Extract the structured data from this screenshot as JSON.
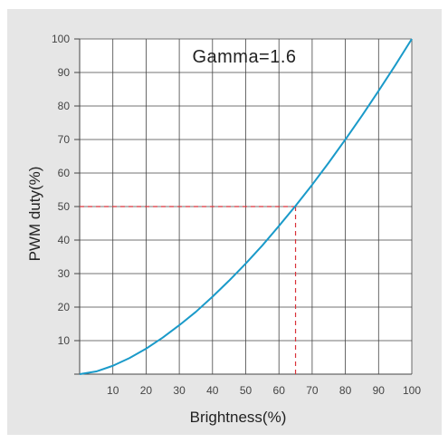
{
  "chart_data": {
    "type": "line",
    "annotation": "Gamma=1.6",
    "xlabel": "Brightness(%)",
    "ylabel": "PWM duty(%)",
    "xlim": [
      0,
      100
    ],
    "ylim": [
      0,
      100
    ],
    "x_ticks": [
      "10",
      "20",
      "30",
      "40",
      "50",
      "60",
      "70",
      "80",
      "90",
      "100"
    ],
    "y_ticks": [
      "10",
      "20",
      "30",
      "40",
      "50",
      "60",
      "70",
      "80",
      "90",
      "100"
    ],
    "grid": true,
    "gamma": 1.6,
    "series": [
      {
        "x": [
          0,
          5,
          10,
          15,
          20,
          25,
          30,
          35,
          40,
          45,
          50,
          55,
          60,
          65,
          70,
          75,
          80,
          85,
          90,
          95,
          100
        ],
        "y": [
          0,
          0.8,
          2.5,
          4.8,
          7.6,
          10.9,
          14.6,
          18.6,
          23.1,
          27.9,
          33.0,
          38.4,
          44.2,
          50.2,
          56.5,
          63.1,
          70.0,
          77.1,
          84.5,
          92.1,
          100.0
        ]
      }
    ],
    "reference": {
      "x": 65,
      "y": 50
    },
    "colors": {
      "curve": "#1a9ac9",
      "reference": "#d9333a",
      "grid": "#444444",
      "panel": "#e6e6e6",
      "plot_bg": "#ffffff"
    }
  }
}
